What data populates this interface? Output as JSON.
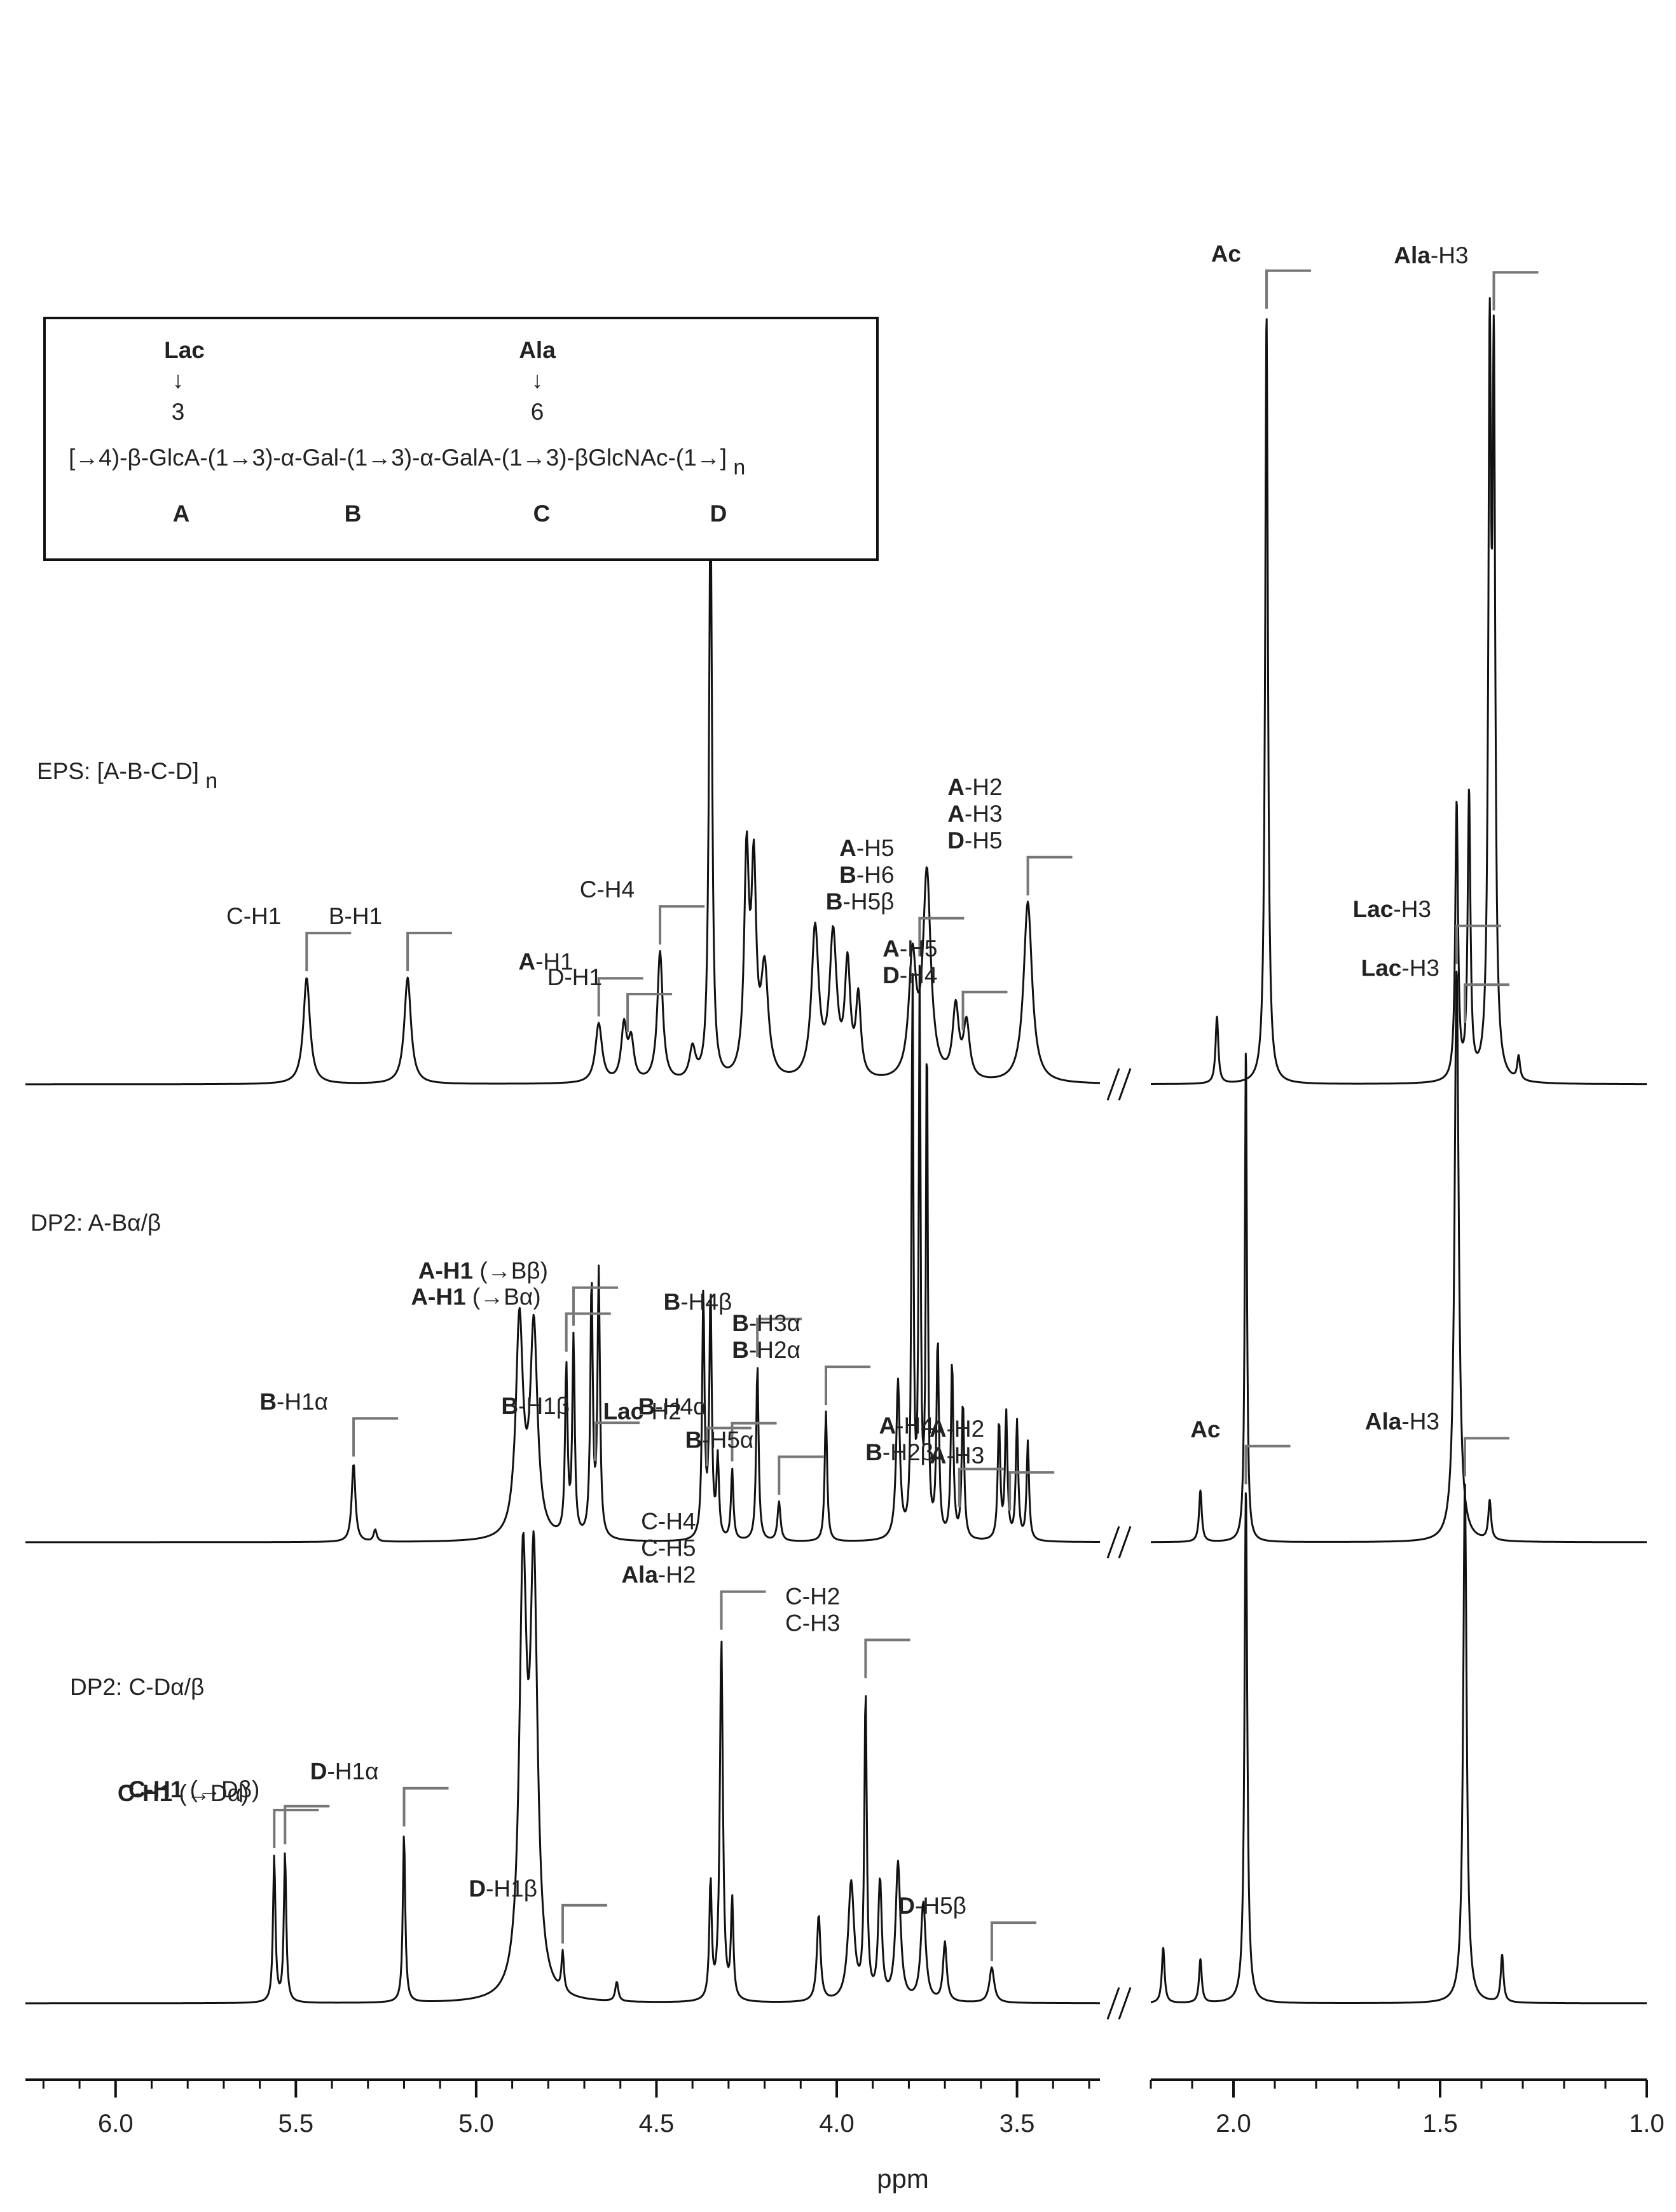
{
  "chart_data": {
    "type": "line",
    "title": "",
    "xlabel": "ppm",
    "ylabel": "",
    "x_reversed": true,
    "axis_break": {
      "from": 2.2,
      "to": 3.27
    },
    "xlim_left": [
      6.25,
      3.27
    ],
    "xlim_right": [
      2.2,
      1.0
    ],
    "xticks_left": [
      "6.0",
      "5.5",
      "5.0",
      "4.5",
      "4.0",
      "3.5"
    ],
    "xticks_right": [
      "2.0",
      "1.5",
      "1.0"
    ],
    "structure": {
      "top_substituents": [
        {
          "name": "Lac",
          "position": "3",
          "residue": "A"
        },
        {
          "name": "Ala",
          "position": "6",
          "residue": "C"
        }
      ],
      "arrow": "↓",
      "sequence": "[→4)-β-GlcA-(1→3)-α-Gal-(1→3)-α-GalA-(1→3)-βGlcNAc-(1→]",
      "subscript": "n",
      "residues": [
        "A",
        "B",
        "C",
        "D"
      ]
    },
    "series": [
      {
        "name": "EPS: [A-B-C-D]",
        "name_sub": "n",
        "peaks": [
          {
            "ppm": 5.47,
            "h": 0.27,
            "w": 0.011
          },
          {
            "ppm": 5.19,
            "h": 0.27,
            "w": 0.011
          },
          {
            "ppm": 4.66,
            "h": 0.15,
            "w": 0.011
          },
          {
            "ppm": 4.59,
            "h": 0.14,
            "w": 0.009
          },
          {
            "ppm": 4.57,
            "h": 0.1,
            "w": 0.009
          },
          {
            "ppm": 4.49,
            "h": 0.33,
            "w": 0.009
          },
          {
            "ppm": 4.4,
            "h": 0.08,
            "w": 0.01
          },
          {
            "ppm": 4.35,
            "h": 1.5,
            "w": 0.005
          },
          {
            "ppm": 4.25,
            "h": 0.55,
            "w": 0.008
          },
          {
            "ppm": 4.23,
            "h": 0.5,
            "w": 0.008
          },
          {
            "ppm": 4.2,
            "h": 0.27,
            "w": 0.012
          },
          {
            "ppm": 4.06,
            "h": 0.38,
            "w": 0.012
          },
          {
            "ppm": 4.01,
            "h": 0.36,
            "w": 0.012
          },
          {
            "ppm": 3.97,
            "h": 0.28,
            "w": 0.009
          },
          {
            "ppm": 3.94,
            "h": 0.2,
            "w": 0.008
          },
          {
            "ppm": 3.79,
            "h": 0.3,
            "w": 0.012
          },
          {
            "ppm": 3.75,
            "h": 0.52,
            "w": 0.013
          },
          {
            "ppm": 3.67,
            "h": 0.18,
            "w": 0.01
          },
          {
            "ppm": 3.64,
            "h": 0.14,
            "w": 0.01
          },
          {
            "ppm": 3.47,
            "h": 0.46,
            "w": 0.014
          },
          {
            "ppm": 2.04,
            "h": 0.17,
            "w": 0.004
          },
          {
            "ppm": 1.92,
            "h": 1.95,
            "w": 0.004
          },
          {
            "ppm": 1.46,
            "h": 0.7,
            "w": 0.004
          },
          {
            "ppm": 1.43,
            "h": 0.72,
            "w": 0.004
          },
          {
            "ppm": 1.38,
            "h": 1.75,
            "w": 0.004
          },
          {
            "ppm": 1.37,
            "h": 1.7,
            "w": 0.004
          },
          {
            "ppm": 1.31,
            "h": 0.06,
            "w": 0.004
          }
        ]
      },
      {
        "name": "DP2: A-Bα/β",
        "peaks": [
          {
            "ppm": 5.34,
            "h": 0.2,
            "w": 0.006
          },
          {
            "ppm": 5.28,
            "h": 0.03,
            "w": 0.005
          },
          {
            "ppm": 4.88,
            "h": 0.55,
            "w": 0.012
          },
          {
            "ppm": 4.84,
            "h": 0.53,
            "w": 0.012
          },
          {
            "ppm": 4.75,
            "h": 0.43,
            "w": 0.004
          },
          {
            "ppm": 4.73,
            "h": 0.5,
            "w": 0.004
          },
          {
            "ppm": 4.68,
            "h": 0.65,
            "w": 0.004
          },
          {
            "ppm": 4.66,
            "h": 0.67,
            "w": 0.004
          },
          {
            "ppm": 4.37,
            "h": 0.62,
            "w": 0.004
          },
          {
            "ppm": 4.35,
            "h": 0.62,
            "w": 0.004
          },
          {
            "ppm": 4.33,
            "h": 0.2,
            "w": 0.004
          },
          {
            "ppm": 4.29,
            "h": 0.18,
            "w": 0.004
          },
          {
            "ppm": 4.22,
            "h": 0.45,
            "w": 0.004
          },
          {
            "ppm": 4.16,
            "h": 0.1,
            "w": 0.005
          },
          {
            "ppm": 4.03,
            "h": 0.33,
            "w": 0.004
          },
          {
            "ppm": 3.83,
            "h": 0.4,
            "w": 0.006
          },
          {
            "ppm": 3.79,
            "h": 1.45,
            "w": 0.003
          },
          {
            "ppm": 3.77,
            "h": 1.4,
            "w": 0.003
          },
          {
            "ppm": 3.75,
            "h": 1.3,
            "w": 0.003
          },
          {
            "ppm": 3.72,
            "h": 0.5,
            "w": 0.004
          },
          {
            "ppm": 3.68,
            "h": 0.45,
            "w": 0.004
          },
          {
            "ppm": 3.65,
            "h": 0.35,
            "w": 0.004
          },
          {
            "ppm": 3.55,
            "h": 0.3,
            "w": 0.004
          },
          {
            "ppm": 3.53,
            "h": 0.32,
            "w": 0.004
          },
          {
            "ppm": 3.5,
            "h": 0.3,
            "w": 0.004
          },
          {
            "ppm": 3.47,
            "h": 0.25,
            "w": 0.004
          },
          {
            "ppm": 2.08,
            "h": 0.13,
            "w": 0.004
          },
          {
            "ppm": 1.97,
            "h": 1.25,
            "w": 0.003
          },
          {
            "ppm": 1.46,
            "h": 1.45,
            "w": 0.006
          },
          {
            "ppm": 1.38,
            "h": 0.1,
            "w": 0.004
          }
        ]
      },
      {
        "name": "DP2: C-Dα/β",
        "peaks": [
          {
            "ppm": 5.56,
            "h": 0.37,
            "w": 0.004
          },
          {
            "ppm": 5.53,
            "h": 0.38,
            "w": 0.004
          },
          {
            "ppm": 5.2,
            "h": 0.43,
            "w": 0.004
          },
          {
            "ppm": 4.87,
            "h": 1.05,
            "w": 0.012
          },
          {
            "ppm": 4.84,
            "h": 1.05,
            "w": 0.012
          },
          {
            "ppm": 4.76,
            "h": 0.1,
            "w": 0.004
          },
          {
            "ppm": 4.61,
            "h": 0.05,
            "w": 0.005
          },
          {
            "ppm": 4.32,
            "h": 0.92,
            "w": 0.005
          },
          {
            "ppm": 4.35,
            "h": 0.3,
            "w": 0.004
          },
          {
            "ppm": 4.29,
            "h": 0.25,
            "w": 0.004
          },
          {
            "ppm": 4.05,
            "h": 0.22,
            "w": 0.006
          },
          {
            "ppm": 3.96,
            "h": 0.3,
            "w": 0.01
          },
          {
            "ppm": 3.92,
            "h": 0.78,
            "w": 0.004
          },
          {
            "ppm": 3.88,
            "h": 0.3,
            "w": 0.006
          },
          {
            "ppm": 3.83,
            "h": 0.35,
            "w": 0.008
          },
          {
            "ppm": 3.76,
            "h": 0.25,
            "w": 0.008
          },
          {
            "ppm": 3.7,
            "h": 0.15,
            "w": 0.006
          },
          {
            "ppm": 3.57,
            "h": 0.09,
            "w": 0.008
          },
          {
            "ppm": 2.17,
            "h": 0.14,
            "w": 0.004
          },
          {
            "ppm": 2.08,
            "h": 0.11,
            "w": 0.004
          },
          {
            "ppm": 1.97,
            "h": 1.3,
            "w": 0.004
          },
          {
            "ppm": 1.44,
            "h": 1.32,
            "w": 0.005
          },
          {
            "ppm": 1.35,
            "h": 0.12,
            "w": 0.004
          }
        ]
      }
    ],
    "annotations": [
      {
        "series": 0,
        "ppm": 5.47,
        "lines": [
          {
            "parts": [
              {
                "t": "C-H1"
              }
            ]
          }
        ]
      },
      {
        "series": 0,
        "ppm": 5.19,
        "lines": [
          {
            "parts": [
              {
                "t": "B-H1"
              }
            ]
          }
        ]
      },
      {
        "series": 0,
        "ppm": 4.66,
        "lines": [
          {
            "parts": [
              {
                "t": "A",
                "b": true
              },
              {
                "t": "-H1"
              }
            ]
          }
        ]
      },
      {
        "series": 0,
        "ppm": 4.58,
        "lines": [
          {
            "parts": [
              {
                "t": "D-H1"
              }
            ]
          }
        ]
      },
      {
        "series": 0,
        "ppm": 4.49,
        "lines": [
          {
            "parts": [
              {
                "t": "C-H4"
              }
            ]
          }
        ]
      },
      {
        "series": 0,
        "ppm": 3.65,
        "lines": [
          {
            "parts": [
              {
                "t": "A",
                "b": true
              },
              {
                "t": "-H5"
              }
            ]
          },
          {
            "parts": [
              {
                "t": "D",
                "b": true
              },
              {
                "t": "-H4"
              }
            ]
          }
        ]
      },
      {
        "series": 0,
        "ppm": 3.47,
        "lines": [
          {
            "parts": [
              {
                "t": "A",
                "b": true
              },
              {
                "t": "-H2"
              }
            ]
          },
          {
            "parts": [
              {
                "t": "A",
                "b": true
              },
              {
                "t": "-H3"
              }
            ]
          },
          {
            "parts": [
              {
                "t": "D",
                "b": true
              },
              {
                "t": "-H5"
              }
            ]
          }
        ]
      },
      {
        "series": 0,
        "ppm": 1.92,
        "lines": [
          {
            "parts": [
              {
                "t": "Ac",
                "b": true
              }
            ]
          }
        ]
      },
      {
        "series": 0,
        "ppm": 1.44,
        "lines": [
          {
            "parts": [
              {
                "t": "Lac",
                "b": true
              },
              {
                "t": "-H3"
              }
            ]
          }
        ]
      },
      {
        "series": 0,
        "ppm": 1.37,
        "lines": [
          {
            "parts": [
              {
                "t": "Ala",
                "b": true
              },
              {
                "t": "-H3"
              }
            ]
          }
        ]
      },
      {
        "series": 1,
        "ppm": 5.34,
        "lines": [
          {
            "parts": [
              {
                "t": "B",
                "b": true
              },
              {
                "t": "-H1α"
              }
            ]
          }
        ]
      },
      {
        "series": 1,
        "ppm": 4.75,
        "lines": [
          {
            "parts": [
              {
                "t": "A-H1",
                "b": true
              },
              {
                "t": " (→Bα)"
              }
            ]
          }
        ]
      },
      {
        "series": 1,
        "ppm": 4.73,
        "lines": [
          {
            "parts": [
              {
                "t": "A-H1",
                "b": true
              },
              {
                "t": " (→Bβ)"
              }
            ]
          }
        ]
      },
      {
        "series": 1,
        "ppm": 4.67,
        "lines": [
          {
            "parts": [
              {
                "t": "B",
                "b": true
              },
              {
                "t": "-H1β"
              }
            ]
          }
        ]
      },
      {
        "series": 1,
        "ppm": 4.36,
        "lines": [
          {
            "parts": [
              {
                "t": "Lac",
                "b": true
              },
              {
                "t": "-H2"
              }
            ]
          }
        ]
      },
      {
        "series": 1,
        "ppm": 4.29,
        "lines": [
          {
            "parts": [
              {
                "t": "B",
                "b": true
              },
              {
                "t": "-H4α"
              }
            ]
          }
        ]
      },
      {
        "series": 1,
        "ppm": 4.22,
        "lines": [
          {
            "parts": [
              {
                "t": "B",
                "b": true
              },
              {
                "t": "-H4β"
              }
            ]
          }
        ]
      },
      {
        "series": 1,
        "ppm": 4.16,
        "lines": [
          {
            "parts": [
              {
                "t": "B",
                "b": true
              },
              {
                "t": "-H5α"
              }
            ]
          }
        ]
      },
      {
        "series": 1,
        "ppm": 4.03,
        "lines": [
          {
            "parts": [
              {
                "t": "B",
                "b": true
              },
              {
                "t": "-H3α"
              }
            ]
          },
          {
            "parts": [
              {
                "t": "B",
                "b": true
              },
              {
                "t": "-H2α"
              }
            ]
          }
        ]
      },
      {
        "series": 1,
        "ppm": 3.77,
        "lines": [
          {
            "parts": [
              {
                "t": "A",
                "b": true
              },
              {
                "t": "-H5"
              }
            ]
          },
          {
            "parts": [
              {
                "t": "B",
                "b": true
              },
              {
                "t": "-H6"
              }
            ]
          },
          {
            "parts": [
              {
                "t": "B",
                "b": true
              },
              {
                "t": "-H5β"
              }
            ]
          }
        ]
      },
      {
        "series": 1,
        "ppm": 3.66,
        "lines": [
          {
            "parts": [
              {
                "t": "A",
                "b": true
              },
              {
                "t": "-H4"
              }
            ]
          },
          {
            "parts": [
              {
                "t": "B",
                "b": true
              },
              {
                "t": "-H2β"
              }
            ]
          }
        ]
      },
      {
        "series": 1,
        "ppm": 3.52,
        "lines": [
          {
            "parts": [
              {
                "t": "A",
                "b": true
              },
              {
                "t": "-H2"
              }
            ]
          },
          {
            "parts": [
              {
                "t": "A",
                "b": true
              },
              {
                "t": "-H3"
              }
            ]
          }
        ]
      },
      {
        "series": 1,
        "ppm": 1.46,
        "lines": [
          {
            "parts": [
              {
                "t": "Lac",
                "b": true
              },
              {
                "t": "-H3"
              }
            ]
          }
        ]
      },
      {
        "series": 2,
        "ppm": 5.56,
        "lines": [
          {
            "parts": [
              {
                "t": "C-H1",
                "b": true
              },
              {
                "t": " (→Dα)"
              }
            ]
          }
        ]
      },
      {
        "series": 2,
        "ppm": 5.53,
        "lines": [
          {
            "parts": [
              {
                "t": "C-H1",
                "b": true
              },
              {
                "t": " (→Dβ)"
              }
            ]
          }
        ]
      },
      {
        "series": 2,
        "ppm": 5.2,
        "lines": [
          {
            "parts": [
              {
                "t": "D",
                "b": true
              },
              {
                "t": "-H1α"
              }
            ]
          }
        ]
      },
      {
        "series": 2,
        "ppm": 4.76,
        "lines": [
          {
            "parts": [
              {
                "t": "D",
                "b": true
              },
              {
                "t": "-H1β"
              }
            ]
          }
        ]
      },
      {
        "series": 2,
        "ppm": 4.32,
        "lines": [
          {
            "parts": [
              {
                "t": "C-H4"
              }
            ]
          },
          {
            "parts": [
              {
                "t": "C-H5"
              }
            ]
          },
          {
            "parts": [
              {
                "t": "Ala",
                "b": true
              },
              {
                "t": "-H2"
              }
            ]
          }
        ]
      },
      {
        "series": 2,
        "ppm": 3.92,
        "lines": [
          {
            "parts": [
              {
                "t": "C-H2"
              }
            ]
          },
          {
            "parts": [
              {
                "t": "C-H3"
              }
            ]
          }
        ]
      },
      {
        "series": 2,
        "ppm": 3.57,
        "lines": [
          {
            "parts": [
              {
                "t": "D",
                "b": true
              },
              {
                "t": "-H5β"
              }
            ]
          }
        ]
      },
      {
        "series": 2,
        "ppm": 1.97,
        "lines": [
          {
            "parts": [
              {
                "t": "Ac",
                "b": true
              }
            ]
          }
        ]
      },
      {
        "series": 2,
        "ppm": 1.44,
        "lines": [
          {
            "parts": [
              {
                "t": "Ala",
                "b": true
              },
              {
                "t": "-H3"
              }
            ]
          }
        ]
      }
    ],
    "grid": false,
    "legend": "none"
  }
}
